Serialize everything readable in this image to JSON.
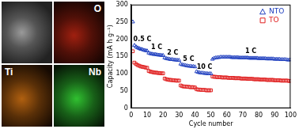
{
  "eds_maps": [
    "O",
    "Ti",
    "Nb"
  ],
  "chart_data": {
    "type": "scatter",
    "x_label": "Cycle number",
    "y_label": "Capacity (mA h g⁻¹)",
    "x": [
      1,
      2,
      3,
      4,
      5,
      6,
      7,
      8,
      9,
      10,
      11,
      12,
      13,
      14,
      15,
      16,
      17,
      18,
      19,
      20,
      21,
      22,
      23,
      24,
      25,
      26,
      27,
      28,
      29,
      30,
      31,
      32,
      33,
      34,
      35,
      36,
      37,
      38,
      39,
      40,
      41,
      42,
      43,
      44,
      45,
      46,
      47,
      48,
      49,
      50,
      51,
      52,
      53,
      54,
      55,
      56,
      57,
      58,
      59,
      60,
      61,
      62,
      63,
      64,
      65,
      66,
      67,
      68,
      69,
      70,
      71,
      72,
      73,
      74,
      75,
      76,
      77,
      78,
      79,
      80,
      81,
      82,
      83,
      84,
      85,
      86,
      87,
      88,
      89,
      90,
      91,
      92,
      93,
      94,
      95,
      96,
      97,
      98,
      99,
      100
    ],
    "series": [
      {
        "name": "NTO",
        "color": "#1f3fbf",
        "marker": "triangle",
        "values": [
          250,
          182,
          178,
          175,
          173,
          171,
          170,
          168,
          167,
          166,
          160,
          158,
          157,
          156,
          156,
          155,
          154,
          154,
          153,
          153,
          146,
          144,
          143,
          142,
          141,
          141,
          140,
          140,
          139,
          139,
          128,
          126,
          125,
          124,
          123,
          122,
          122,
          121,
          121,
          120,
          106,
          104,
          103,
          102,
          102,
          101,
          101,
          100,
          100,
          100,
          142,
          145,
          146,
          147,
          147,
          148,
          148,
          148,
          148,
          148,
          148,
          148,
          147,
          147,
          147,
          147,
          147,
          146,
          146,
          146,
          146,
          146,
          146,
          145,
          145,
          145,
          145,
          145,
          145,
          144,
          144,
          144,
          144,
          144,
          143,
          143,
          143,
          143,
          143,
          142,
          142,
          142,
          142,
          141,
          141,
          141,
          141,
          140,
          140,
          140
        ]
      },
      {
        "name": "TO",
        "color": "#e02020",
        "marker": "square",
        "values": [
          165,
          132,
          128,
          125,
          123,
          121,
          120,
          119,
          118,
          117,
          108,
          106,
          105,
          104,
          103,
          103,
          102,
          102,
          101,
          101,
          86,
          84,
          83,
          82,
          82,
          81,
          81,
          80,
          80,
          80,
          66,
          64,
          63,
          63,
          62,
          62,
          61,
          61,
          61,
          60,
          55,
          54,
          54,
          53,
          53,
          53,
          52,
          52,
          52,
          52,
          92,
          91,
          91,
          90,
          90,
          90,
          89,
          89,
          89,
          89,
          88,
          88,
          88,
          88,
          87,
          87,
          87,
          87,
          86,
          86,
          86,
          86,
          85,
          85,
          85,
          85,
          84,
          84,
          84,
          84,
          83,
          83,
          83,
          83,
          82,
          82,
          82,
          82,
          82,
          81,
          81,
          81,
          81,
          80,
          80,
          80,
          80,
          80,
          79,
          79
        ]
      }
    ],
    "xlim": [
      0,
      100
    ],
    "xticks": [
      0,
      10,
      20,
      30,
      40,
      50,
      60,
      70,
      80,
      90,
      100
    ],
    "ylim": [
      0,
      300
    ],
    "yticks": [
      0,
      50,
      100,
      150,
      200,
      250,
      300
    ],
    "grid": false,
    "legend": "upper right",
    "annotations": [
      {
        "text": "0.5 C",
        "x": 7,
        "y": 200
      },
      {
        "text": "1 C",
        "x": 16,
        "y": 175
      },
      {
        "text": "2 C",
        "x": 26,
        "y": 160
      },
      {
        "text": "5 C",
        "x": 36,
        "y": 142
      },
      {
        "text": "10 C",
        "x": 46,
        "y": 118
      },
      {
        "text": "1 C",
        "x": 75,
        "y": 164
      }
    ]
  }
}
